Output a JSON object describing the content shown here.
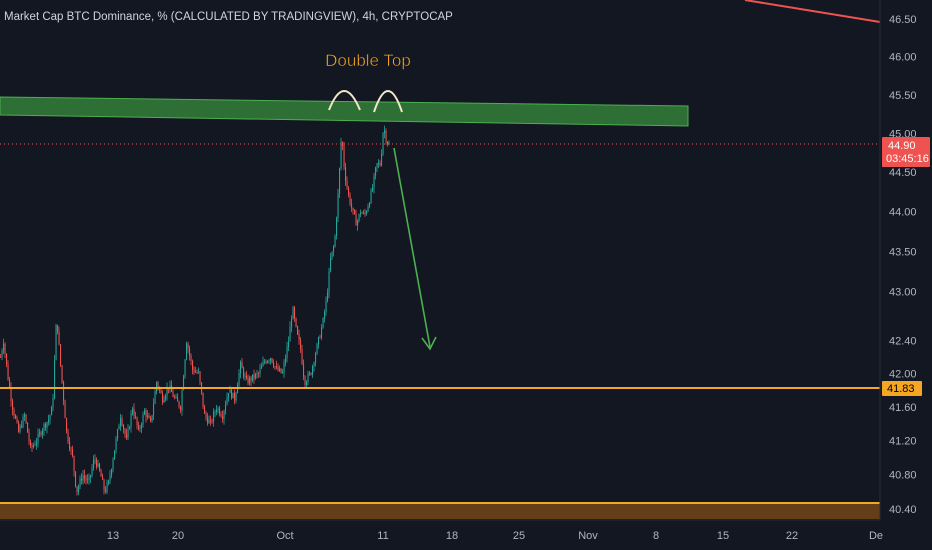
{
  "chart_title": "Market Cap BTC Dominance, % (CALCULATED BY TRADINGVIEW), 4h, CRYPTOCAP",
  "annotation": "Double Top",
  "colors": {
    "background": "#131722",
    "up": "#26a69a",
    "down": "#ef5350",
    "price_line": "#ef5350",
    "support": "#f5a623",
    "resistance_fill": "#2e7d32",
    "arrow": "#4caf50",
    "arch": "#f0e6c8"
  },
  "chart_data": {
    "type": "candlestick",
    "y_axis": {
      "scale": "log",
      "ticks": [
        "46.50",
        "46.00",
        "45.50",
        "45.00",
        "44.50",
        "44.00",
        "43.50",
        "43.00",
        "42.40",
        "42.00",
        "41.60",
        "41.20",
        "40.80",
        "40.40"
      ]
    },
    "x_axis": {
      "ticks": [
        "13",
        "20",
        "Oct",
        "11",
        "18",
        "25",
        "Nov",
        "8",
        "15",
        "22",
        "De"
      ]
    },
    "last_price": {
      "value": "44.90",
      "countdown": "03:45:16"
    },
    "support_level": "41.83",
    "support_zone_bottom": "40.40",
    "resistance_zone": {
      "from": 45.2,
      "to": 45.6,
      "note": "sloping slightly upward"
    },
    "pattern": "Double Top",
    "projection": {
      "from": 44.85,
      "to": 42.4,
      "direction": "down"
    },
    "price_path": [
      [
        0,
        42.2
      ],
      [
        3,
        42.4
      ],
      [
        8,
        41.9
      ],
      [
        12,
        41.6
      ],
      [
        18,
        41.3
      ],
      [
        24,
        41.5
      ],
      [
        30,
        41.1
      ],
      [
        36,
        41.2
      ],
      [
        42,
        41.35
      ],
      [
        48,
        41.45
      ],
      [
        52,
        41.6
      ],
      [
        56,
        42.7
      ],
      [
        60,
        42.1
      ],
      [
        66,
        41.3
      ],
      [
        72,
        41.0
      ],
      [
        76,
        40.6
      ],
      [
        82,
        40.8
      ],
      [
        88,
        40.7
      ],
      [
        94,
        41.0
      ],
      [
        100,
        40.8
      ],
      [
        104,
        40.6
      ],
      [
        108,
        40.7
      ],
      [
        114,
        41.1
      ],
      [
        120,
        41.5
      ],
      [
        126,
        41.2
      ],
      [
        132,
        41.6
      ],
      [
        138,
        41.3
      ],
      [
        144,
        41.55
      ],
      [
        150,
        41.4
      ],
      [
        156,
        41.9
      ],
      [
        162,
        41.7
      ],
      [
        168,
        41.85
      ],
      [
        174,
        41.7
      ],
      [
        180,
        41.6
      ],
      [
        186,
        42.4
      ],
      [
        192,
        42.05
      ],
      [
        198,
        42.0
      ],
      [
        204,
        41.5
      ],
      [
        210,
        41.4
      ],
      [
        216,
        41.6
      ],
      [
        222,
        41.5
      ],
      [
        228,
        41.8
      ],
      [
        234,
        41.7
      ],
      [
        240,
        42.1
      ],
      [
        246,
        41.9
      ],
      [
        252,
        41.95
      ],
      [
        258,
        42.0
      ],
      [
        264,
        42.15
      ],
      [
        270,
        42.2
      ],
      [
        276,
        42.05
      ],
      [
        282,
        42.0
      ],
      [
        288,
        42.4
      ],
      [
        292,
        42.8
      ],
      [
        296,
        42.5
      ],
      [
        300,
        42.3
      ],
      [
        304,
        41.9
      ],
      [
        310,
        42.0
      ],
      [
        316,
        42.3
      ],
      [
        322,
        42.6
      ],
      [
        326,
        42.9
      ],
      [
        330,
        43.4
      ],
      [
        334,
        43.6
      ],
      [
        338,
        44.3
      ],
      [
        341,
        45.0
      ],
      [
        344,
        44.5
      ],
      [
        348,
        44.2
      ],
      [
        352,
        44.0
      ],
      [
        356,
        43.85
      ],
      [
        360,
        44.0
      ],
      [
        364,
        43.95
      ],
      [
        368,
        44.1
      ],
      [
        372,
        44.3
      ],
      [
        376,
        44.6
      ],
      [
        380,
        44.6
      ],
      [
        383,
        45.1
      ],
      [
        386,
        44.9
      ],
      [
        389,
        44.85
      ]
    ]
  }
}
